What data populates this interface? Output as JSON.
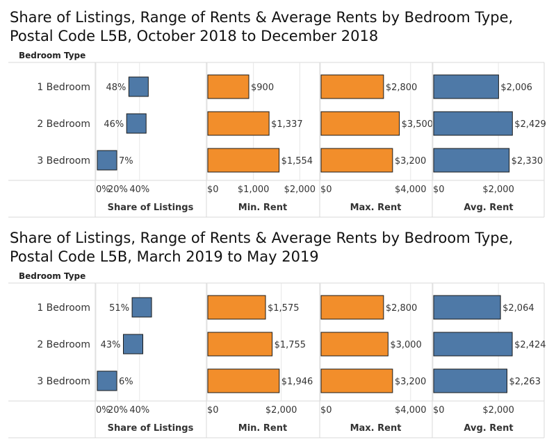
{
  "colors": {
    "orange": "#F28E2B",
    "blue": "#4E79A7",
    "border": "#1a1a1a",
    "grid": "#e6e6e6",
    "line": "#d9d9d9"
  },
  "chart_data": [
    {
      "type": "bar",
      "title": "Share of Listings, Range of Rents & Average Rents by Bedroom Type, Postal Code L5B, October 2018 to December 2018",
      "row_header": "Bedroom Type",
      "categories": [
        "1 Bedroom",
        "2 Bedroom",
        "3 Bedroom"
      ],
      "panels": [
        {
          "label": "Share of Listings",
          "values": [
            48,
            46,
            7
          ],
          "value_labels": [
            "48%",
            "46%",
            "7%"
          ],
          "xlim": [
            0,
            100
          ],
          "ticks": [
            0,
            20,
            40
          ],
          "tick_labels": [
            "0%",
            "20%",
            "40%"
          ],
          "color": "blue"
        },
        {
          "label": "Min. Rent",
          "values": [
            900,
            1337,
            1554
          ],
          "value_labels": [
            "$900",
            "$1,337",
            "$1,554"
          ],
          "xlim": [
            0,
            2400
          ],
          "ticks": [
            0,
            1000,
            2000
          ],
          "tick_labels": [
            "$0",
            "$1,000",
            "$2,000"
          ],
          "color": "orange"
        },
        {
          "label": "Max. Rent",
          "values": [
            2800,
            3500,
            3200
          ],
          "value_labels": [
            "$2,800",
            "$3,500",
            "$3,200"
          ],
          "xlim": [
            0,
            4900
          ],
          "ticks": [
            0,
            4000
          ],
          "tick_labels": [
            "$0",
            "$4,000"
          ],
          "color": "orange"
        },
        {
          "label": "Avg. Rent",
          "values": [
            2006,
            2429,
            2330
          ],
          "value_labels": [
            "$2,006",
            "$2,429",
            "$2,330"
          ],
          "xlim": [
            0,
            3400
          ],
          "ticks": [
            0,
            2000
          ],
          "tick_labels": [
            "$0",
            "$2,000"
          ],
          "color": "blue"
        }
      ]
    },
    {
      "type": "bar",
      "title": "Share of Listings, Range of Rents & Average Rents by Bedroom Type, Postal Code L5B, March 2019 to May 2019",
      "row_header": "Bedroom Type",
      "categories": [
        "1 Bedroom",
        "2 Bedroom",
        "3 Bedroom"
      ],
      "panels": [
        {
          "label": "Share of Listings",
          "values": [
            51,
            43,
            6
          ],
          "value_labels": [
            "51%",
            "43%",
            "6%"
          ],
          "xlim": [
            0,
            100
          ],
          "ticks": [
            0,
            20,
            40
          ],
          "tick_labels": [
            "0%",
            "20%",
            "40%"
          ],
          "color": "blue"
        },
        {
          "label": "Min. Rent",
          "values": [
            1575,
            1755,
            1946
          ],
          "value_labels": [
            "$1,575",
            "$1,755",
            "$1,946"
          ],
          "xlim": [
            0,
            3000
          ],
          "ticks": [
            0,
            2000
          ],
          "tick_labels": [
            "$0",
            "$2,000"
          ],
          "color": "orange"
        },
        {
          "label": "Max. Rent",
          "values": [
            2800,
            3000,
            3200
          ],
          "value_labels": [
            "$2,800",
            "$3,000",
            "$3,200"
          ],
          "xlim": [
            0,
            4900
          ],
          "ticks": [
            0,
            4000
          ],
          "tick_labels": [
            "$0",
            "$4,000"
          ],
          "color": "orange"
        },
        {
          "label": "Avg. Rent",
          "values": [
            2064,
            2424,
            2263
          ],
          "value_labels": [
            "$2,064",
            "$2,424",
            "$2,263"
          ],
          "xlim": [
            0,
            3400
          ],
          "ticks": [
            0,
            2000
          ],
          "tick_labels": [
            "$0",
            "$2,000"
          ],
          "color": "blue"
        }
      ]
    }
  ]
}
